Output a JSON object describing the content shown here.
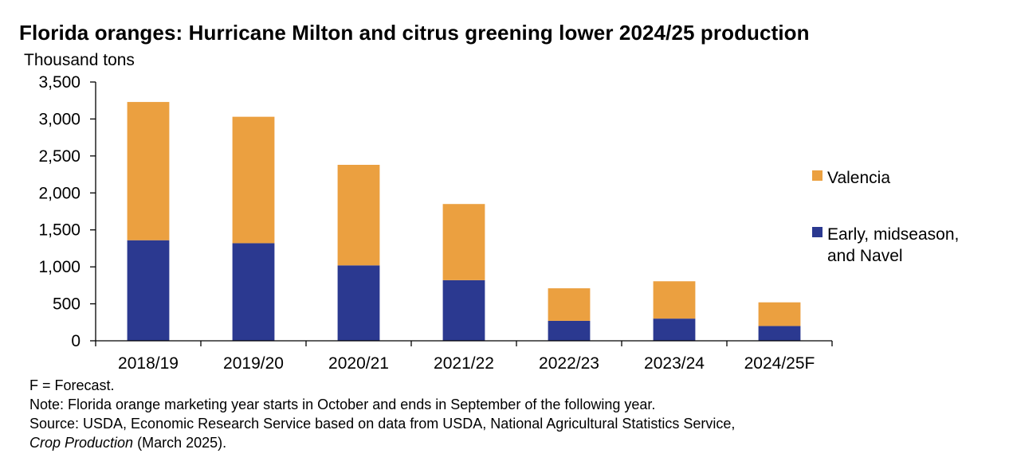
{
  "chart_data": {
    "type": "bar",
    "stacked": true,
    "title": "Florida oranges: Hurricane Milton and citrus greening lower 2024/25 production",
    "ylabel": "Thousand tons",
    "xlabel": "",
    "ylim": [
      0,
      3500
    ],
    "yticks": [
      0,
      500,
      1000,
      1500,
      2000,
      2500,
      3000,
      3500
    ],
    "ytick_labels": [
      "0",
      "500",
      "1,000",
      "1,500",
      "2,000",
      "2,500",
      "3,000",
      "3,500"
    ],
    "categories": [
      "2018/19",
      "2019/20",
      "2020/21",
      "2021/22",
      "2022/23",
      "2023/24",
      "2024/25F"
    ],
    "series": [
      {
        "name": "Early, midseason, and Navel",
        "color": "#2B3990",
        "values": [
          1360,
          1320,
          1020,
          820,
          270,
          300,
          200
        ]
      },
      {
        "name": "Valencia",
        "color": "#EBA040",
        "values": [
          1870,
          1710,
          1360,
          1030,
          440,
          505,
          320
        ]
      }
    ],
    "legend": {
      "placement": "right",
      "items": [
        {
          "lines": [
            "Valencia"
          ],
          "color": "#EBA040"
        },
        {
          "lines": [
            "Early, midseason,",
            "and Navel"
          ],
          "color": "#2B3990"
        }
      ]
    },
    "grid": false
  },
  "notes": {
    "forecast": "F = Forecast.",
    "note": "Note: Florida orange marketing year starts in October and ends in September of the following year.",
    "source": "Source: USDA, Economic Research Service based on data from USDA, National Agricultural Statistics Service,",
    "source_italic": "Crop Production",
    "source_tail": " (March 2025)."
  }
}
